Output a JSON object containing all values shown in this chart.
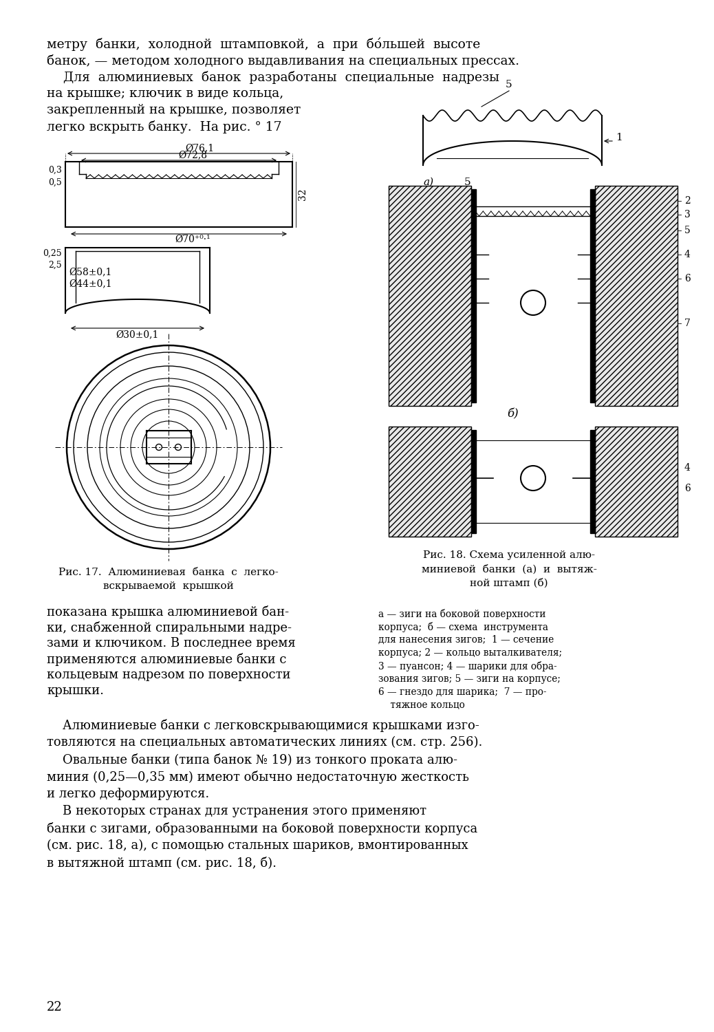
{
  "page_bg": "#ffffff",
  "text_color": "#000000",
  "line_color": "#000000",
  "top_text_lines": [
    "метру  банки,  холодной  штамповкой,  а  при  бо́льшей  высоте",
    "банок, — методом холодного выдавливания на специальных прессах.",
    "    Для  алюминиевых  банок  разработаны  специальные  надрезы",
    "на крышке; ключик в виде кольца,",
    "закрепленный на крышке, позволяет",
    "легко вскрыть банку.  На рис. ° 17"
  ],
  "fig17_caption": [
    "Рис. 17.  Алюминиевая  банка  с  легко-",
    "вскрываемой  крышкой"
  ],
  "fig18_caption": [
    "Рис. 18. Схема усиленной алю-",
    "миниевой  банки  (а)  и  вытяж-",
    "ной штамп (б)"
  ],
  "legend_text": [
    "а — зиги на боковой поверхности",
    "корпуса;  б — схема  инструмента",
    "для нанесения зигов;  1 — сечение",
    "корпуса; 2 — кольцо выталкивателя;",
    "3 — пуансон; 4 — шарики для обра-",
    "зования зигов; 5 — зиги на корпусе;",
    "6 — гнездо для шарика;  7 — про-",
    "    тяжное кольцо"
  ],
  "body_text_col1": [
    "показана крышка алюминиевой бан-",
    "ки, снабженной спиральными надре-",
    "зами и ключиком. В последнее время",
    "применяются алюминиевые банки с",
    "кольцевым надрезом по поверхности",
    "крышки."
  ],
  "body_text_full": [
    "    Алюминиевые банки с легковскрывающимися крышками изго-",
    "товляются на специальных автоматических линиях (см. стр. 256).",
    "    Овальные банки (типа банок № 19) из тонкого проката алю-",
    "миния (0,25—0,35 мм) имеют обычно недостаточную жесткость",
    "и легко деформируются.",
    "    В некоторых странах для устранения этого применяют",
    "банки с зигами, образованными на боковой поверхности корпуса",
    "(см. рис. 18, а), с помощью стальных шариков, вмонтированных",
    "в вытяжной штамп (см. рис. 18, б)."
  ],
  "page_number": "22"
}
